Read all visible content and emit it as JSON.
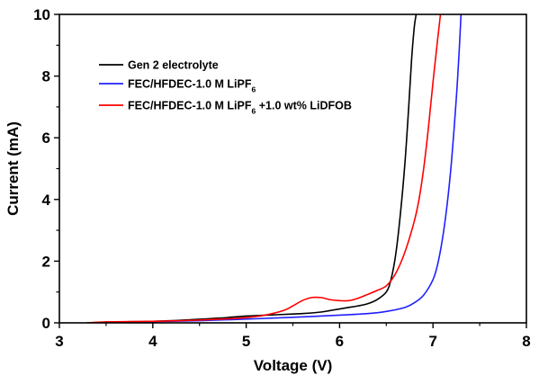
{
  "chart_data": {
    "type": "line",
    "title": "",
    "xlabel": "Voltage (V)",
    "ylabel": "Current (mA)",
    "xlim": [
      3,
      8
    ],
    "ylim": [
      0,
      10
    ],
    "xticks": [
      3,
      4,
      5,
      6,
      7,
      8
    ],
    "yticks": [
      0,
      2,
      4,
      6,
      8,
      10
    ],
    "grid": false,
    "legend_position": "upper-left",
    "series": [
      {
        "name": "Gen 2 electrolyte",
        "legend_parts": [
          {
            "text": "Gen 2 electrolyte",
            "sub": false
          }
        ],
        "color": "#000000",
        "x": [
          3.3,
          3.6,
          4.0,
          4.4,
          4.7,
          5.0,
          5.3,
          5.6,
          5.8,
          5.9,
          6.0,
          6.1,
          6.2,
          6.3,
          6.4,
          6.5,
          6.55,
          6.6,
          6.65,
          6.7,
          6.74,
          6.77,
          6.8,
          6.82
        ],
        "y": [
          0.0,
          0.03,
          0.05,
          0.1,
          0.15,
          0.22,
          0.26,
          0.3,
          0.35,
          0.4,
          0.45,
          0.5,
          0.55,
          0.62,
          0.75,
          1.0,
          1.4,
          2.2,
          3.5,
          5.2,
          7.0,
          8.5,
          9.6,
          10.0
        ]
      },
      {
        "name": "FEC/HFDEC-1.0 M LiPF6",
        "legend_parts": [
          {
            "text": "FEC/HFDEC-1.0 M LiPF",
            "sub": false
          },
          {
            "text": "6",
            "sub": true
          }
        ],
        "color": "#2020ff",
        "x": [
          3.3,
          3.5,
          4.0,
          4.5,
          5.0,
          5.5,
          6.0,
          6.3,
          6.5,
          6.7,
          6.8,
          6.9,
          7.0,
          7.05,
          7.1,
          7.15,
          7.2,
          7.25,
          7.28,
          7.3
        ],
        "y": [
          0.0,
          0.02,
          0.04,
          0.07,
          0.12,
          0.18,
          0.25,
          0.3,
          0.37,
          0.5,
          0.65,
          0.9,
          1.4,
          1.9,
          2.7,
          3.8,
          5.3,
          7.3,
          8.8,
          10.0
        ]
      },
      {
        "name": "FEC/HFDEC-1.0 M LiPF6 +1.0 wt% LiDFOB",
        "legend_parts": [
          {
            "text": "FEC/HFDEC-1.0 M LiPF",
            "sub": false
          },
          {
            "text": "6",
            "sub": true
          },
          {
            "text": " +1.0 wt% LiDFOB",
            "sub": false
          }
        ],
        "color": "#ff0000",
        "x": [
          3.3,
          3.5,
          4.0,
          4.4,
          4.8,
          5.0,
          5.2,
          5.4,
          5.5,
          5.6,
          5.7,
          5.8,
          5.9,
          6.0,
          6.1,
          6.2,
          6.3,
          6.4,
          6.5,
          6.6,
          6.7,
          6.8,
          6.85,
          6.9,
          6.95,
          7.0,
          7.05,
          7.08
        ],
        "y": [
          0.0,
          0.03,
          0.05,
          0.08,
          0.13,
          0.17,
          0.25,
          0.4,
          0.55,
          0.72,
          0.82,
          0.82,
          0.75,
          0.72,
          0.72,
          0.8,
          0.92,
          1.05,
          1.2,
          1.6,
          2.3,
          3.3,
          4.0,
          5.0,
          6.3,
          7.8,
          9.2,
          10.0
        ]
      }
    ]
  }
}
